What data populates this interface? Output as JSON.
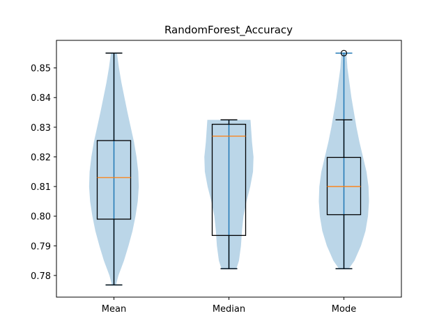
{
  "chart_data": {
    "type": "violin+box",
    "title": "RandomForest_Accuracy",
    "xlabel": "",
    "ylabel": "",
    "categories": [
      "Mean",
      "Median",
      "Mode"
    ],
    "ylim": [
      0.7727,
      0.8593
    ],
    "yticks": [
      0.78,
      0.79,
      0.8,
      0.81,
      0.82,
      0.83,
      0.84,
      0.85
    ],
    "ytick_labels": [
      "0.78",
      "0.79",
      "0.80",
      "0.81",
      "0.82",
      "0.83",
      "0.84",
      "0.85"
    ],
    "grid": false,
    "colors": {
      "violin_fill": "#1f77b4",
      "violin_line": "#1f77b4",
      "box": "#000000",
      "median": "#ff7f0e",
      "flier": "#000000"
    },
    "series": [
      {
        "category": "Mean",
        "violin": {
          "min": 0.7768,
          "max": 0.855,
          "profile": [
            [
              0.7768,
              0.08
            ],
            [
              0.78,
              0.18
            ],
            [
              0.785,
              0.4
            ],
            [
              0.79,
              0.58
            ],
            [
              0.795,
              0.74
            ],
            [
              0.8,
              0.86
            ],
            [
              0.805,
              0.95
            ],
            [
              0.81,
              0.99
            ],
            [
              0.815,
              0.97
            ],
            [
              0.82,
              0.9
            ],
            [
              0.825,
              0.8
            ],
            [
              0.83,
              0.67
            ],
            [
              0.835,
              0.54
            ],
            [
              0.84,
              0.42
            ],
            [
              0.845,
              0.3
            ],
            [
              0.85,
              0.2
            ],
            [
              0.855,
              0.12
            ]
          ]
        },
        "box": {
          "whislo": 0.7768,
          "q1": 0.799,
          "median": 0.813,
          "q3": 0.8255,
          "whishi": 0.855
        },
        "fliers": []
      },
      {
        "category": "Median",
        "violin": {
          "min": 0.7823,
          "max": 0.8325,
          "profile": [
            [
              0.7823,
              0.3
            ],
            [
              0.785,
              0.4
            ],
            [
              0.79,
              0.48
            ],
            [
              0.795,
              0.52
            ],
            [
              0.8,
              0.58
            ],
            [
              0.805,
              0.7
            ],
            [
              0.81,
              0.85
            ],
            [
              0.815,
              0.96
            ],
            [
              0.82,
              0.98
            ],
            [
              0.825,
              0.92
            ],
            [
              0.83,
              0.88
            ],
            [
              0.8325,
              0.86
            ]
          ]
        },
        "box": {
          "whislo": 0.7823,
          "q1": 0.7935,
          "median": 0.827,
          "q3": 0.831,
          "whishi": 0.8325
        },
        "fliers": []
      },
      {
        "category": "Mode",
        "violin": {
          "min": 0.7823,
          "max": 0.855,
          "profile": [
            [
              0.7823,
              0.2
            ],
            [
              0.785,
              0.42
            ],
            [
              0.79,
              0.68
            ],
            [
              0.795,
              0.86
            ],
            [
              0.8,
              0.96
            ],
            [
              0.805,
              1.0
            ],
            [
              0.81,
              0.98
            ],
            [
              0.815,
              0.9
            ],
            [
              0.82,
              0.76
            ],
            [
              0.825,
              0.62
            ],
            [
              0.83,
              0.5
            ],
            [
              0.835,
              0.4
            ],
            [
              0.84,
              0.3
            ],
            [
              0.845,
              0.22
            ],
            [
              0.85,
              0.14
            ],
            [
              0.855,
              0.1
            ]
          ]
        },
        "box": {
          "whislo": 0.7823,
          "q1": 0.8005,
          "median": 0.81,
          "q3": 0.8198,
          "whishi": 0.8325
        },
        "fliers": [
          0.855
        ]
      }
    ]
  }
}
